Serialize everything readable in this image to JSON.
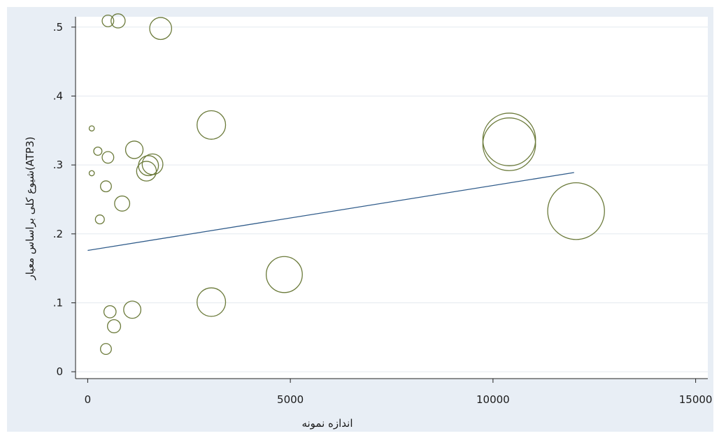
{
  "chart_data": {
    "type": "scatter",
    "title": "",
    "xlabel": "اندازه نمونه",
    "ylabel": "شیوع کلی براساس معیار(ATP3)",
    "xlim": [
      -300,
      15300
    ],
    "ylim": [
      -0.01,
      0.515
    ],
    "xticks": [
      {
        "value": 0,
        "label": "0"
      },
      {
        "value": 5000,
        "label": "5000"
      },
      {
        "value": 10000,
        "label": "10000"
      },
      {
        "value": 15000,
        "label": "15000"
      }
    ],
    "yticks": [
      {
        "value": 0,
        "label": "0"
      },
      {
        "value": 0.1,
        "label": ".1"
      },
      {
        "value": 0.2,
        "label": ".2"
      },
      {
        "value": 0.3,
        "label": ".3"
      },
      {
        "value": 0.4,
        "label": ".4"
      },
      {
        "value": 0.5,
        "label": ".5"
      }
    ],
    "grid": true,
    "legend": "none",
    "marker_style": "hollow circles sized by sample size",
    "points": [
      {
        "x": 500,
        "y": 0.509
      },
      {
        "x": 750,
        "y": 0.509
      },
      {
        "x": 1800,
        "y": 0.498
      },
      {
        "x": 100,
        "y": 0.353
      },
      {
        "x": 3050,
        "y": 0.358
      },
      {
        "x": 250,
        "y": 0.32
      },
      {
        "x": 1150,
        "y": 0.322
      },
      {
        "x": 500,
        "y": 0.311
      },
      {
        "x": 1600,
        "y": 0.301
      },
      {
        "x": 1500,
        "y": 0.299
      },
      {
        "x": 1450,
        "y": 0.291
      },
      {
        "x": 100,
        "y": 0.288
      },
      {
        "x": 450,
        "y": 0.269
      },
      {
        "x": 850,
        "y": 0.244
      },
      {
        "x": 300,
        "y": 0.221
      },
      {
        "x": 10400,
        "y": 0.337
      },
      {
        "x": 10400,
        "y": 0.33
      },
      {
        "x": 12050,
        "y": 0.233
      },
      {
        "x": 4850,
        "y": 0.141
      },
      {
        "x": 3050,
        "y": 0.101
      },
      {
        "x": 1100,
        "y": 0.09
      },
      {
        "x": 550,
        "y": 0.087
      },
      {
        "x": 650,
        "y": 0.066
      },
      {
        "x": 450,
        "y": 0.033
      }
    ],
    "fit_line": {
      "x": [
        0,
        12000
      ],
      "y": [
        0.176,
        0.289
      ],
      "color": "#2f5b8a"
    },
    "marker_color": "#6b7a3a"
  }
}
